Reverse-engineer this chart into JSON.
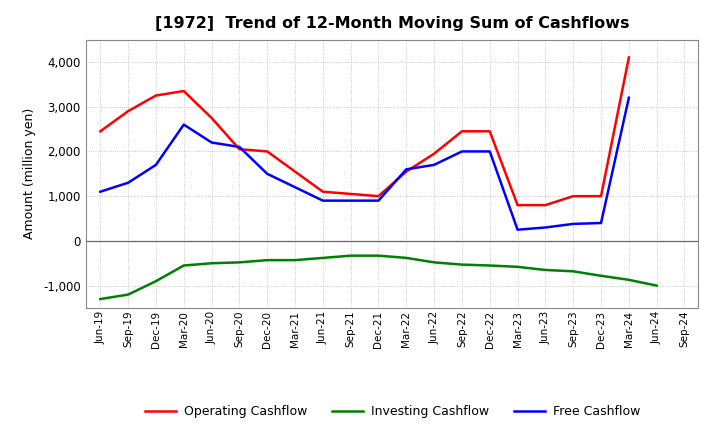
{
  "title": "[1972]  Trend of 12-Month Moving Sum of Cashflows",
  "ylabel": "Amount (million yen)",
  "x_labels": [
    "Jun-19",
    "Sep-19",
    "Dec-19",
    "Mar-20",
    "Jun-20",
    "Sep-20",
    "Dec-20",
    "Mar-21",
    "Jun-21",
    "Sep-21",
    "Dec-21",
    "Mar-22",
    "Jun-22",
    "Sep-22",
    "Dec-22",
    "Mar-23",
    "Jun-23",
    "Sep-23",
    "Dec-23",
    "Mar-24",
    "Jun-24",
    "Sep-24"
  ],
  "operating": [
    2450,
    2900,
    3250,
    3350,
    2750,
    2050,
    2000,
    1550,
    1100,
    1050,
    1000,
    1550,
    1950,
    2450,
    2450,
    800,
    800,
    1000,
    1000,
    4100,
    null,
    null
  ],
  "investing": [
    -1300,
    -1200,
    -900,
    -550,
    -500,
    -480,
    -430,
    -430,
    -380,
    -330,
    -330,
    -380,
    -480,
    -530,
    -550,
    -580,
    -650,
    -680,
    -780,
    -870,
    -1000,
    null
  ],
  "free": [
    1100,
    1300,
    1700,
    2600,
    2200,
    2100,
    1500,
    1200,
    900,
    900,
    900,
    1600,
    1700,
    2000,
    2000,
    250,
    300,
    380,
    400,
    3200,
    null,
    null
  ],
  "operating_color": "#ff0000",
  "investing_color": "#008000",
  "free_color": "#0000ff",
  "ylim": [
    -1500,
    4500
  ],
  "yticks": [
    -1000,
    0,
    1000,
    2000,
    3000,
    4000
  ],
  "background_color": "#ffffff",
  "grid_color": "#bbbbbb",
  "legend_labels": [
    "Operating Cashflow",
    "Investing Cashflow",
    "Free Cashflow"
  ],
  "linewidth": 1.8
}
